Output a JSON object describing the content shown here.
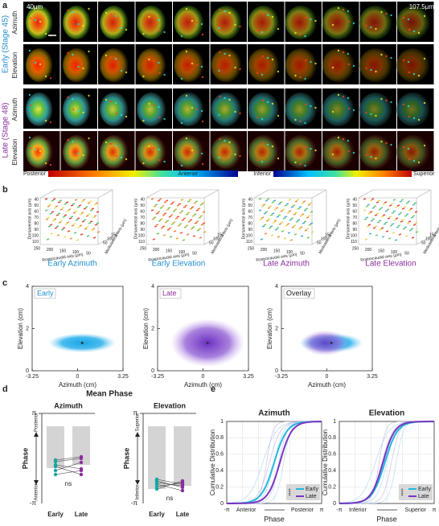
{
  "panel_labels": [
    "a",
    "b",
    "c",
    "d",
    "e"
  ],
  "a": {
    "scale_start": "40µm",
    "scale_end": "107.5µm",
    "groups": [
      {
        "label": "Early (Stage 45)",
        "rows": [
          "Azimuth",
          "Elevation"
        ]
      },
      {
        "label": "Late (Stage 48)",
        "rows": [
          "Azimuth",
          "Elevation"
        ]
      }
    ],
    "colorbars": [
      {
        "left": "Posterior",
        "right": "Anterior"
      },
      {
        "left": "Inferior",
        "right": "Superior"
      }
    ]
  },
  "b": {
    "plots": [
      "Early Azimuth",
      "Early Elevation",
      "Late Azimuth",
      "Late Elevation"
    ],
    "axes": {
      "dv": "Dorsoventral axis (µm)",
      "rc": "Rostrocaudal axis (µm)",
      "ml": "Mediolateral axis (µm)"
    },
    "dv_ticks": [
      "40",
      "50",
      "60",
      "70",
      "80",
      "90",
      "100",
      "110"
    ],
    "rc_ticks": [
      "250",
      "200",
      "150",
      "100",
      "50"
    ],
    "ml_ticks": [
      "50",
      "100",
      "150"
    ]
  },
  "c": {
    "plots": [
      "Early",
      "Late",
      "Overlay"
    ],
    "xlabel": "Azimuth (cm)",
    "ylabel": "Elevation (cm)",
    "xticks": [
      "-3.25",
      "0",
      "3.25"
    ],
    "yticks": [
      "0",
      "2",
      "4"
    ]
  },
  "d": {
    "title": "Mean Phase",
    "ylabel": "Phase",
    "yticks": [
      "π",
      "-π"
    ],
    "categories": [
      "Early",
      "Late"
    ],
    "plots": [
      {
        "title": "Azimuth",
        "top": "Posterior",
        "bottom": "Anterior",
        "stat": "ns"
      },
      {
        "title": "Elevation",
        "top": "Superior",
        "bottom": "Inferior",
        "stat": "ns"
      }
    ]
  },
  "e": {
    "ylabel": "Cumulative Distribution",
    "xlabel": "Phase",
    "xticks": [
      "-π",
      "π"
    ],
    "yticks": [
      "0",
      "0.2",
      "0.4",
      "0.6",
      "0.8",
      "1"
    ],
    "legend": [
      "Early",
      "Late"
    ],
    "stat": "****",
    "plots": [
      {
        "title": "Azimuth",
        "left": "Anterior",
        "right": "Posterior"
      },
      {
        "title": "Elevation",
        "left": "Inferior",
        "right": "Superior"
      }
    ]
  }
}
